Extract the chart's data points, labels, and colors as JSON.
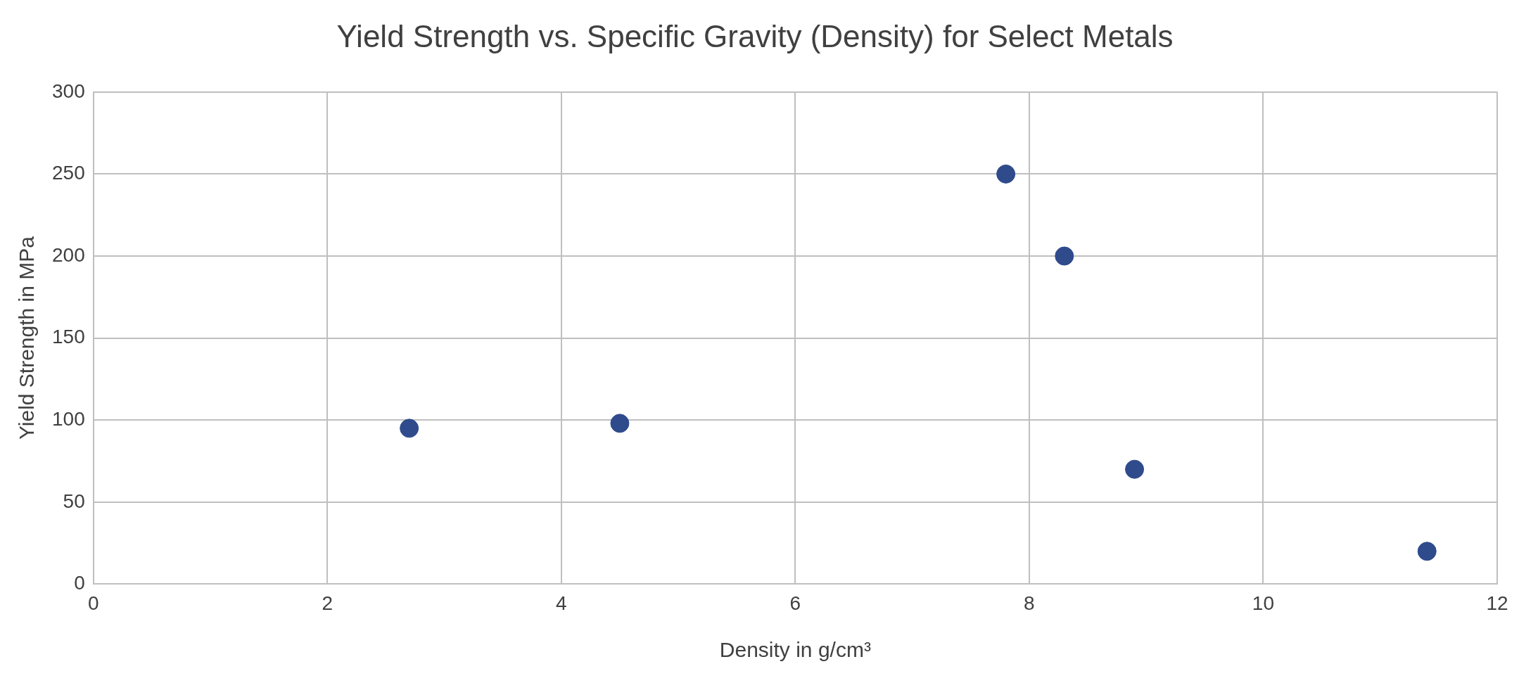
{
  "chart_data": {
    "type": "scatter",
    "title": "Yield Strength vs. Specific Gravity (Density) for Select Metals",
    "xlabel": "Density in g/cm³",
    "ylabel": "Yield Strength in MPa",
    "x": [
      2.7,
      4.5,
      7.8,
      8.3,
      8.9,
      11.4
    ],
    "values": [
      95,
      98,
      250,
      200,
      70,
      20
    ],
    "color": "#2f4b8c",
    "marker": "circle",
    "xlim": [
      0,
      12
    ],
    "xticks": [
      0,
      2,
      4,
      6,
      8,
      10,
      12
    ],
    "ylim": [
      0,
      300
    ],
    "yticks": [
      0,
      50,
      100,
      150,
      200,
      250,
      300
    ],
    "grid": true
  }
}
